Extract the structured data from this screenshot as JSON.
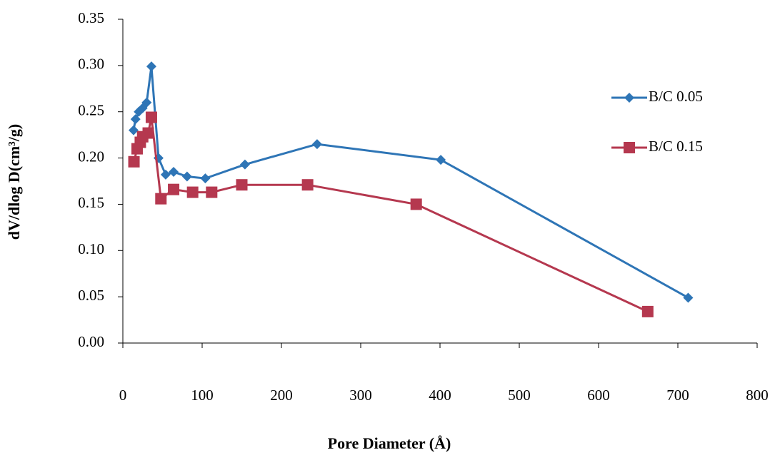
{
  "chart_data": {
    "type": "line",
    "x_label": "Pore Diameter (Å)",
    "y_label": "dV/dlog D(cm³/g)",
    "xlim": [
      0,
      800
    ],
    "xticks": [
      0,
      100,
      200,
      300,
      400,
      500,
      600,
      700,
      800
    ],
    "ylim": [
      0,
      0.35
    ],
    "yticks": [
      {
        "value": 0,
        "label": "0.00"
      },
      0.05,
      {
        "value": 0.1,
        "label": "0.10"
      },
      0.15,
      {
        "value": 0.2,
        "label": "0.20"
      },
      0.25,
      {
        "value": 0.3,
        "label": "0.30"
      },
      0.35
    ],
    "legend": "right",
    "series": [
      {
        "name": "B/C 0.05",
        "color": "#2e75b6",
        "marker": "diamond",
        "x": [
          13.5,
          16,
          20,
          25,
          30,
          36,
          45,
          54,
          64,
          81,
          104,
          154,
          245,
          401,
          713
        ],
        "values": [
          0.23,
          0.242,
          0.25,
          0.254,
          0.26,
          0.299,
          0.2,
          0.182,
          0.185,
          0.18,
          0.178,
          0.193,
          0.215,
          0.198,
          0.049
        ]
      },
      {
        "name": "B/C 0.15",
        "color": "#b5384f",
        "marker": "square",
        "x": [
          14,
          18,
          22,
          25,
          32,
          36,
          48,
          64,
          88,
          112,
          150,
          233,
          370,
          662
        ],
        "values": [
          0.196,
          0.21,
          0.217,
          0.223,
          0.227,
          0.244,
          0.156,
          0.166,
          0.163,
          0.163,
          0.171,
          0.171,
          0.15,
          0.034
        ]
      }
    ]
  }
}
